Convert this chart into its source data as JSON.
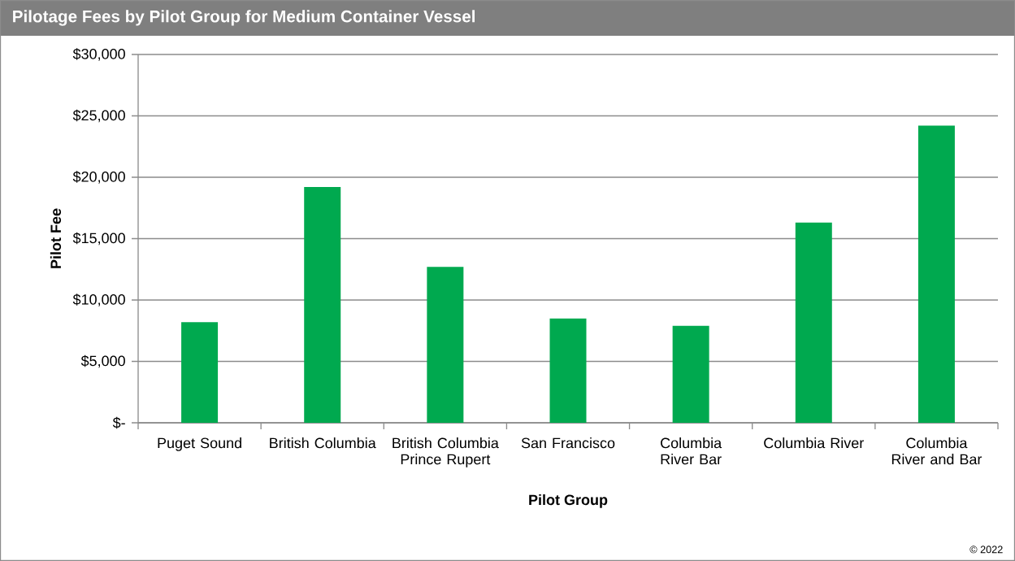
{
  "chart_data": {
    "type": "bar",
    "title": "Pilotage Fees by Pilot Group for Medium Container Vessel",
    "xlabel": "Pilot Group",
    "ylabel": "Pilot Fee",
    "categories": [
      "Puget Sound",
      "British Columbia",
      "British Columbia Prince Rupert",
      "San Francisco",
      "Columbia River Bar",
      "Columbia River",
      "Columbia River and Bar"
    ],
    "values": [
      8200,
      19200,
      12700,
      8500,
      7900,
      16300,
      24200
    ],
    "color": "#00a94f",
    "ylim": [
      0,
      30000
    ],
    "yticks": [
      {
        "value": 0,
        "label": "$-"
      },
      {
        "value": 5000,
        "label": "$5,000"
      },
      {
        "value": 10000,
        "label": "$10,000"
      },
      {
        "value": 15000,
        "label": "$15,000"
      },
      {
        "value": 20000,
        "label": "$20,000"
      },
      {
        "value": 25000,
        "label": "$25,000"
      },
      {
        "value": 30000,
        "label": "$30,000"
      }
    ],
    "grid": "y",
    "annotations": [
      "© 2022"
    ]
  }
}
